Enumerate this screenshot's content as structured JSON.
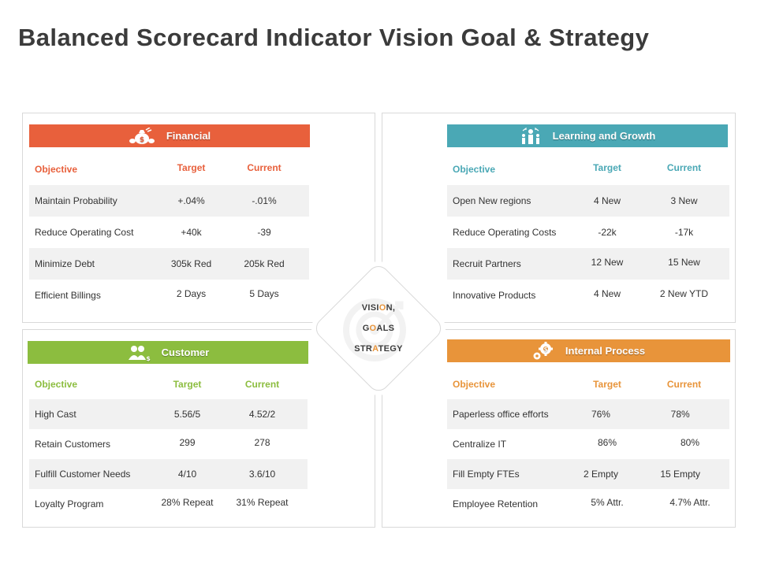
{
  "title": "Balanced Scorecard Indicator Vision Goal & Strategy",
  "colors": {
    "financial": "#e8603c",
    "learning": "#4aa8b5",
    "customer": "#8cbd3f",
    "internal": "#e8943a"
  },
  "center": {
    "line1_a": "VISI",
    "line1_b": "O",
    "line1_c": "N,",
    "line2_a": "G",
    "line2_b": "O",
    "line2_c": "ALS",
    "line3_a": "STR",
    "line3_b": "A",
    "line3_c": "TEGY"
  },
  "financial": {
    "title": "Financial",
    "icon": "money-bag-icon",
    "headers": [
      "Objective",
      "Target",
      "Current"
    ],
    "rows": [
      [
        "Maintain Probability",
        "+.04%",
        "-.01%"
      ],
      [
        "Reduce Operating Cost",
        "+40k",
        "-39"
      ],
      [
        "Minimize Debt",
        "305k Red",
        "205k Red"
      ],
      [
        "Efficient Billings",
        "2 Days",
        "5 Days"
      ]
    ]
  },
  "learning": {
    "title": "Learning and Growth",
    "icon": "growth-people-icon",
    "headers": [
      "Objective",
      "Target",
      "Current"
    ],
    "rows": [
      [
        "Open New regions",
        "4 New",
        "3 New"
      ],
      [
        "Reduce Operating Costs",
        "-22k",
        "-17k"
      ],
      [
        "Recruit Partners",
        "12 New",
        "15 New"
      ],
      [
        "Innovative Products",
        "4 New",
        "2 New YTD"
      ]
    ]
  },
  "customer": {
    "title": "Customer",
    "icon": "customers-icon",
    "headers": [
      "Objective",
      "Target",
      "Current"
    ],
    "rows": [
      [
        "High Cast",
        "5.56/5",
        "4.52/2"
      ],
      [
        "Retain Customers",
        "299",
        "278"
      ],
      [
        "Fulfill Customer Needs",
        "4/10",
        "3.6/10"
      ],
      [
        "Loyalty Program",
        "28% Repeat",
        "31% Repeat"
      ]
    ]
  },
  "internal": {
    "title": "Internal Process",
    "icon": "gears-icon",
    "headers": [
      "Objective",
      "Target",
      "Current"
    ],
    "rows": [
      [
        "Paperless office efforts",
        "76%",
        "78%"
      ],
      [
        "Centralize IT",
        "86%",
        "80%"
      ],
      [
        "Fill Empty FTEs",
        "2 Empty",
        "15 Empty"
      ],
      [
        "Employee Retention",
        "5% Attr.",
        "4.7% Attr."
      ]
    ]
  }
}
